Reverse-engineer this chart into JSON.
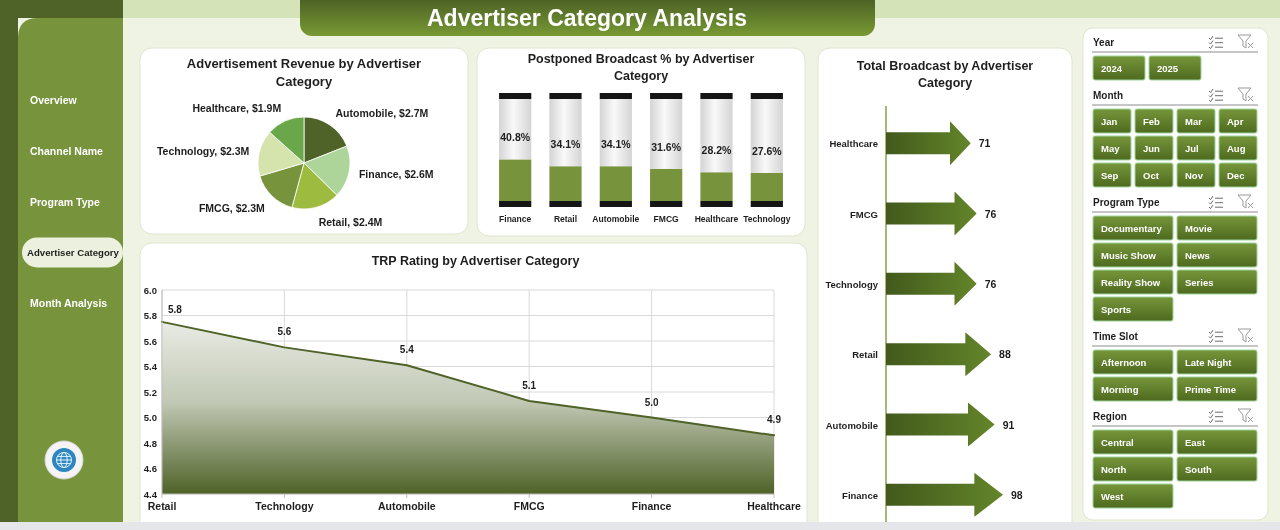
{
  "chart_data": [
    {
      "type": "other",
      "title": "Advertiser Category Analysis",
      "annotations": [
        "Overview",
        "Channel Name",
        "Program Type",
        "Advertiser Category",
        "Month Analysis"
      ]
    },
    {
      "type": "pie",
      "title": "Advertisement Revenue by Advertiser Category",
      "categories": [
        "Automobile",
        "Finance",
        "Retail",
        "FMCG",
        "Technology",
        "Healthcare"
      ],
      "values": [
        2.7,
        2.6,
        2.4,
        2.3,
        2.3,
        1.9
      ],
      "value_labels": [
        "$2.7M",
        "$2.6M",
        "$2.4M",
        "$2.3M",
        "$2.3M",
        "$1.9M"
      ],
      "colors": [
        "#4f6228",
        "#add59a",
        "#9dbb3f",
        "#77933c",
        "#d5e3ad",
        "#6aa64a"
      ]
    },
    {
      "type": "bar",
      "title": "Postponed Broadcast % by Advertiser Category",
      "categories": [
        "Finance",
        "Retail",
        "Automobile",
        "FMCG",
        "Healthcare",
        "Technology"
      ],
      "stacked": true,
      "series": [
        {
          "color": "#77933c",
          "values": [
            40.8,
            34.1,
            34.1,
            31.6,
            28.2,
            27.6
          ],
          "value_labels": [
            "40.8%",
            "34.1%",
            "34.1%",
            "31.6%",
            "28.2%",
            "27.6%"
          ]
        },
        {
          "color": "#d4d4d4",
          "values": [
            59.2,
            65.9,
            65.9,
            68.4,
            71.8,
            72.4
          ]
        }
      ],
      "tick_labels": "x"
    },
    {
      "type": "area",
      "title": "TRP Rating by Advertiser Category",
      "categories": [
        "Retail",
        "Technology",
        "Automobile",
        "FMCG",
        "Finance",
        "Healthcare"
      ],
      "values": [
        5.75,
        5.55,
        5.41,
        5.13,
        5.0,
        4.86
      ],
      "value_labels": [
        "5.8",
        "5.6",
        "5.4",
        "5.1",
        "5.0",
        "4.9"
      ],
      "color": "#4f6228",
      "ylim": [
        4.4,
        6.0
      ],
      "yticks": [
        4.4,
        4.6,
        4.8,
        {
          "value": 5,
          "label": "5.0"
        },
        5.2,
        5.4,
        5.6,
        5.8,
        {
          "value": 6,
          "label": "6.0"
        }
      ],
      "grid": true
    },
    {
      "type": "bar",
      "orientation": "horizontal",
      "title": "Total Broadcast by Advertiser Category",
      "categories": [
        "Healthcare",
        "FMCG",
        "Technology",
        "Retail",
        "Automobile",
        "Finance"
      ],
      "values": [
        71,
        76,
        76,
        88,
        91,
        98
      ],
      "data_labels": true,
      "color": "#5b7a26",
      "tick_labels": "y"
    },
    {
      "type": "other",
      "title": "Year",
      "annotations": [
        "2024",
        "2025"
      ]
    },
    {
      "type": "other",
      "title": "Month",
      "annotations": [
        "Jan",
        "Feb",
        "Mar",
        "Apr",
        "May",
        "Jun",
        "Jul",
        "Aug",
        "Sep",
        "Oct",
        "Nov",
        "Dec"
      ]
    },
    {
      "type": "other",
      "title": "Program Type",
      "annotations": [
        "Documentary",
        "Movie",
        "Music Show",
        "News",
        "Reality Show",
        "Series",
        "Sports"
      ]
    },
    {
      "type": "other",
      "title": "Time Slot",
      "annotations": [
        "Afternoon",
        "Late Night",
        "Morning",
        "Prime Time"
      ]
    },
    {
      "type": "other",
      "title": "Region",
      "annotations": [
        "Central",
        "East",
        "North",
        "South",
        "West"
      ]
    }
  ]
}
